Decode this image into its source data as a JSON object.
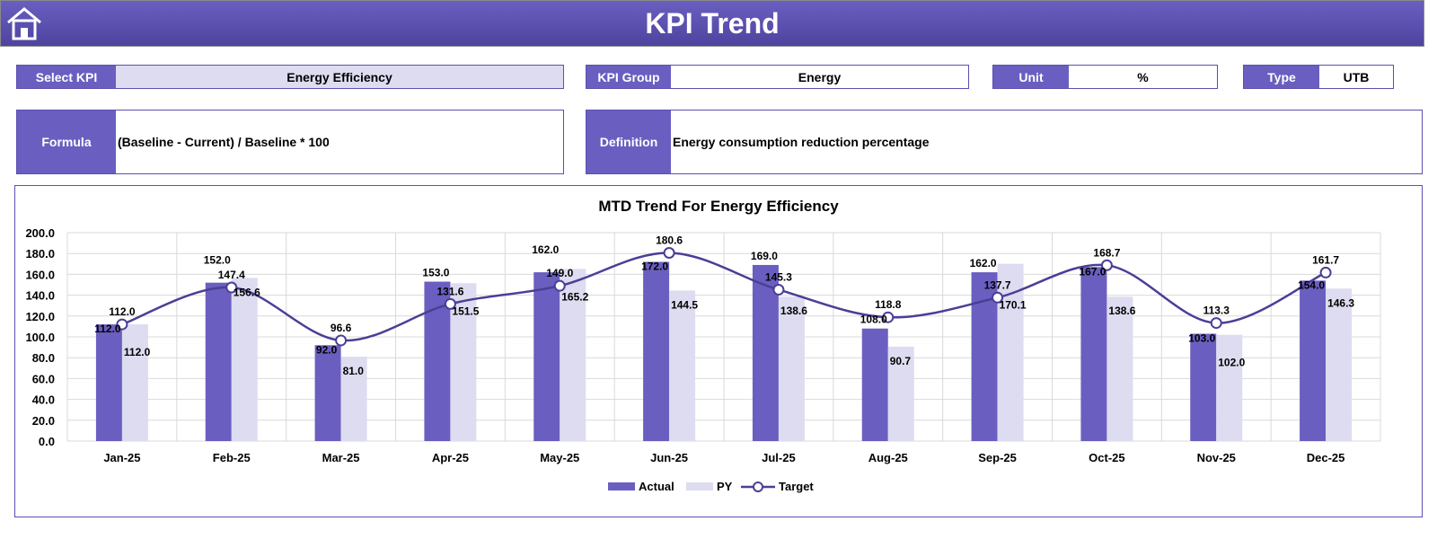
{
  "header": {
    "title": "KPI Trend",
    "home_icon": "home-icon"
  },
  "select_kpi": {
    "label": "Select KPI",
    "value": "Energy Efficiency"
  },
  "kpi_group": {
    "label": "KPI Group",
    "value": "Energy"
  },
  "unit": {
    "label": "Unit",
    "value": "%"
  },
  "type": {
    "label": "Type",
    "value": "UTB"
  },
  "formula": {
    "label": "Formula",
    "value": "(Baseline - Current) / Baseline * 100"
  },
  "definition": {
    "label": "Definition",
    "value": "Energy consumption reduction percentage"
  },
  "colors": {
    "actual": "#6a5fc0",
    "py": "#dddcf0",
    "target": "#4a3f96"
  },
  "chart_data": {
    "type": "bar",
    "title": "MTD Trend For Energy Efficiency",
    "categories": [
      "Jan-25",
      "Feb-25",
      "Mar-25",
      "Apr-25",
      "May-25",
      "Jun-25",
      "Jul-25",
      "Aug-25",
      "Sep-25",
      "Oct-25",
      "Nov-25",
      "Dec-25"
    ],
    "ylim": [
      0,
      200
    ],
    "yticks": [
      "0.0",
      "20.0",
      "40.0",
      "60.0",
      "80.0",
      "100.0",
      "120.0",
      "140.0",
      "160.0",
      "180.0",
      "200.0"
    ],
    "grid": true,
    "legend": "bottom",
    "series": [
      {
        "name": "Actual",
        "type": "bar",
        "values": [
          112.0,
          152.0,
          92.0,
          153.0,
          162.0,
          172.0,
          169.0,
          108.0,
          162.0,
          167.0,
          103.0,
          154.0
        ]
      },
      {
        "name": "PY",
        "type": "bar",
        "values": [
          112.0,
          156.6,
          81.0,
          151.5,
          165.2,
          144.5,
          138.6,
          90.7,
          170.1,
          138.6,
          102.0,
          146.3
        ]
      },
      {
        "name": "Target",
        "type": "line",
        "values": [
          112.0,
          147.4,
          96.6,
          131.6,
          149.0,
          180.6,
          145.3,
          118.8,
          137.7,
          168.7,
          113.3,
          161.7
        ]
      }
    ]
  }
}
